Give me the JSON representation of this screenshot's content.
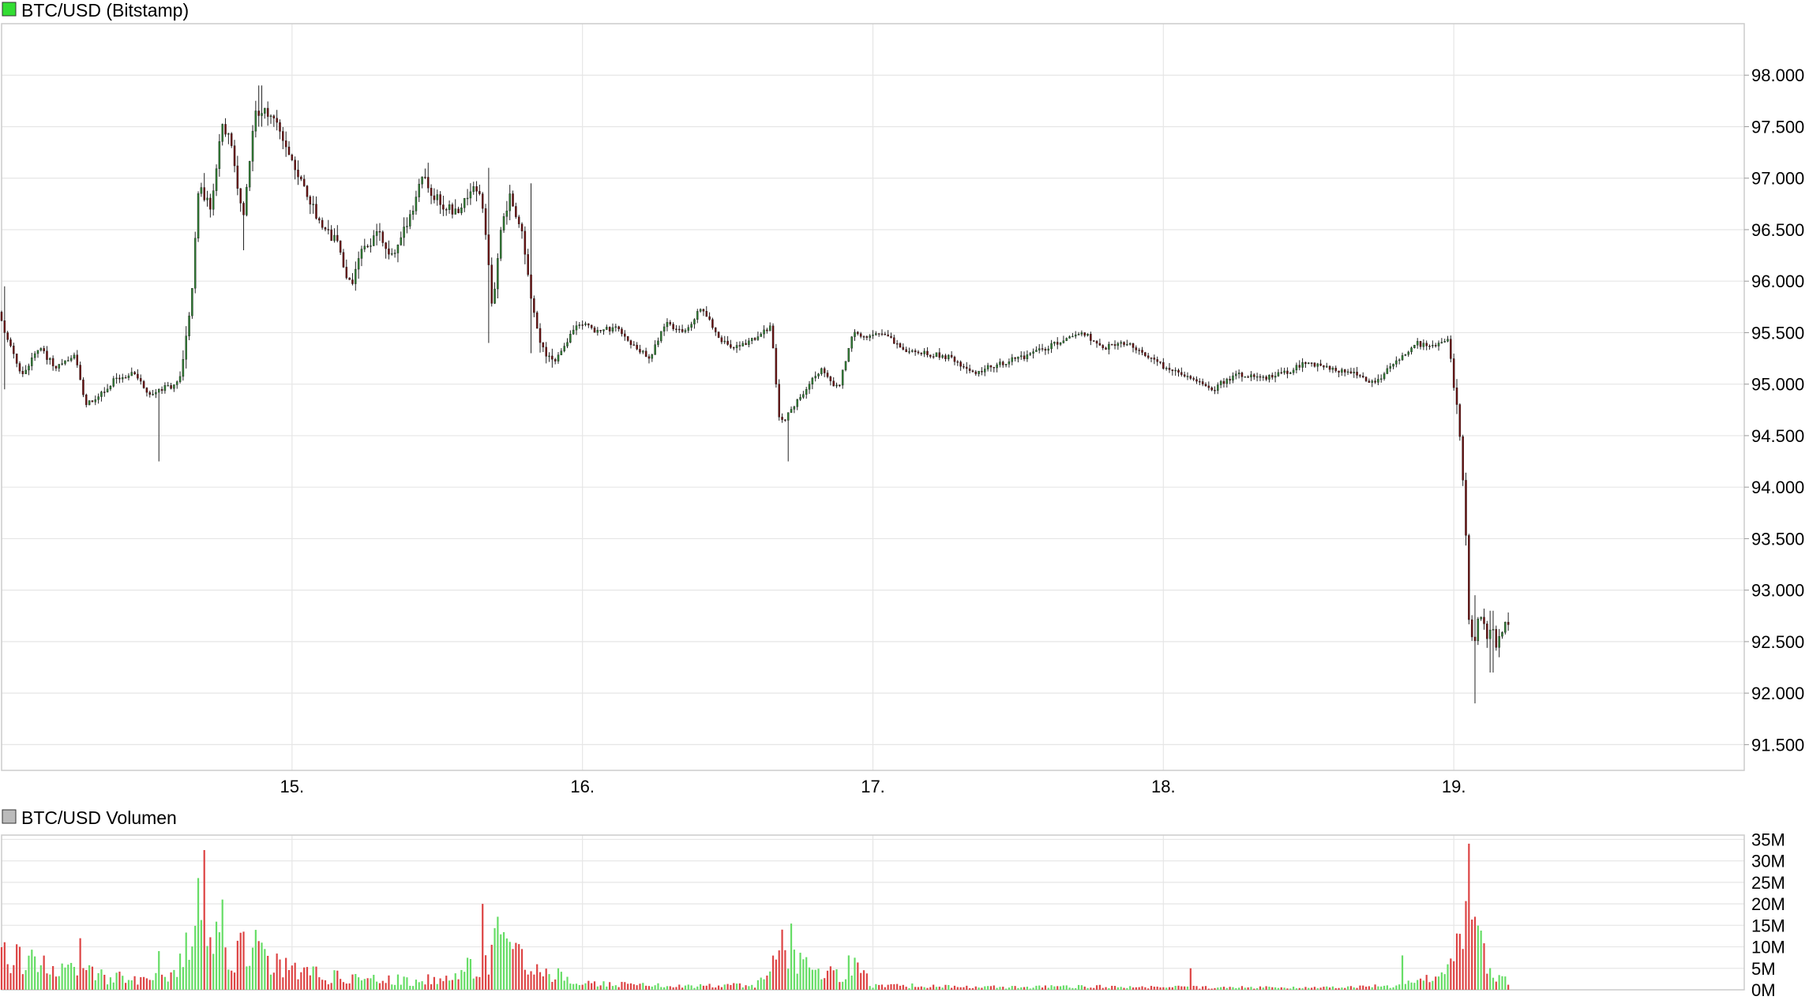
{
  "chart_data": [
    {
      "type": "candlestick",
      "title": "BTC/USD (Bitstamp)",
      "legend_color": "#33dd33",
      "y_tick_labels": [
        "98.000",
        "97.500",
        "97.000",
        "96.500",
        "96.000",
        "95.500",
        "95.000",
        "94.500",
        "94.000",
        "93.500",
        "93.000",
        "92.500",
        "92.000",
        "91.500"
      ],
      "y_ticks": [
        98000,
        97500,
        97000,
        96500,
        96000,
        95500,
        95000,
        94500,
        94000,
        93500,
        93000,
        92500,
        92000,
        91500
      ],
      "ylim": [
        91250,
        98500
      ],
      "x_tick_labels": [
        "15.",
        "16.",
        "17.",
        "18.",
        "19."
      ],
      "x_ticks": [
        1,
        2,
        3,
        4,
        5
      ],
      "xlim": [
        0,
        6
      ],
      "up_color": "#2e7d32",
      "down_color": "#6b0f0f",
      "price_path": [
        [
          0.0,
          95700
        ],
        [
          0.03,
          95450
        ],
        [
          0.08,
          95100
        ],
        [
          0.14,
          95350
        ],
        [
          0.2,
          95150
        ],
        [
          0.26,
          95300
        ],
        [
          0.3,
          94800
        ],
        [
          0.34,
          94850
        ],
        [
          0.4,
          95050
        ],
        [
          0.46,
          95100
        ],
        [
          0.52,
          94900
        ],
        [
          0.56,
          94950
        ],
        [
          0.62,
          95000
        ],
        [
          0.66,
          95700
        ],
        [
          0.69,
          96900
        ],
        [
          0.73,
          96700
        ],
        [
          0.77,
          97550
        ],
        [
          0.8,
          97350
        ],
        [
          0.84,
          96600
        ],
        [
          0.88,
          97600
        ],
        [
          0.93,
          97650
        ],
        [
          0.98,
          97400
        ],
        [
          1.02,
          97050
        ],
        [
          1.07,
          96800
        ],
        [
          1.12,
          96500
        ],
        [
          1.17,
          96350
        ],
        [
          1.21,
          95950
        ],
        [
          1.26,
          96350
        ],
        [
          1.31,
          96450
        ],
        [
          1.35,
          96250
        ],
        [
          1.4,
          96500
        ],
        [
          1.46,
          97000
        ],
        [
          1.52,
          96750
        ],
        [
          1.58,
          96650
        ],
        [
          1.64,
          96950
        ],
        [
          1.67,
          96700
        ],
        [
          1.7,
          95700
        ],
        [
          1.73,
          96500
        ],
        [
          1.76,
          96800
        ],
        [
          1.8,
          96550
        ],
        [
          1.83,
          95900
        ],
        [
          1.86,
          95400
        ],
        [
          1.91,
          95200
        ],
        [
          1.95,
          95400
        ],
        [
          2.0,
          95600
        ],
        [
          2.06,
          95500
        ],
        [
          2.12,
          95550
        ],
        [
          2.18,
          95400
        ],
        [
          2.24,
          95250
        ],
        [
          2.3,
          95600
        ],
        [
          2.36,
          95500
        ],
        [
          2.42,
          95750
        ],
        [
          2.48,
          95450
        ],
        [
          2.54,
          95350
        ],
        [
          2.6,
          95450
        ],
        [
          2.66,
          95550
        ],
        [
          2.69,
          94600
        ],
        [
          2.73,
          94750
        ],
        [
          2.78,
          94950
        ],
        [
          2.83,
          95150
        ],
        [
          2.89,
          94950
        ],
        [
          2.94,
          95500
        ],
        [
          3.0,
          95450
        ],
        [
          3.06,
          95500
        ],
        [
          3.12,
          95300
        ],
        [
          3.2,
          95300
        ],
        [
          3.28,
          95250
        ],
        [
          3.36,
          95100
        ],
        [
          3.44,
          95200
        ],
        [
          3.52,
          95250
        ],
        [
          3.6,
          95350
        ],
        [
          3.68,
          95450
        ],
        [
          3.74,
          95500
        ],
        [
          3.8,
          95350
        ],
        [
          3.88,
          95400
        ],
        [
          3.95,
          95300
        ],
        [
          4.02,
          95150
        ],
        [
          4.1,
          95050
        ],
        [
          4.18,
          94950
        ],
        [
          4.26,
          95100
        ],
        [
          4.34,
          95050
        ],
        [
          4.42,
          95100
        ],
        [
          4.5,
          95200
        ],
        [
          4.58,
          95150
        ],
        [
          4.66,
          95100
        ],
        [
          4.74,
          95000
        ],
        [
          4.82,
          95250
        ],
        [
          4.88,
          95400
        ],
        [
          4.94,
          95350
        ],
        [
          4.99,
          95450
        ],
        [
          5.01,
          95000
        ],
        [
          5.03,
          94600
        ],
        [
          5.05,
          93700
        ],
        [
          5.06,
          92750
        ],
        [
          5.08,
          92450
        ],
        [
          5.1,
          92850
        ],
        [
          5.12,
          92550
        ],
        [
          5.14,
          92650
        ],
        [
          5.16,
          92450
        ],
        [
          5.18,
          92600
        ],
        [
          5.19,
          92700
        ]
      ],
      "spikes": [
        [
          0.01,
          95950,
          94950
        ],
        [
          0.54,
          94950,
          94250
        ],
        [
          0.7,
          97050,
          96800
        ],
        [
          0.89,
          97900,
          97500
        ],
        [
          0.83,
          96700,
          96300
        ],
        [
          1.47,
          97150,
          96900
        ],
        [
          1.68,
          97100,
          95400
        ],
        [
          1.82,
          96950,
          95300
        ],
        [
          2.71,
          94700,
          94250
        ],
        [
          5.07,
          92950,
          91900
        ],
        [
          5.13,
          92800,
          92200
        ]
      ]
    },
    {
      "type": "bar",
      "title": "BTC/USD Volumen",
      "legend_color": "#bbbbbb",
      "y_tick_labels": [
        "35M",
        "30M",
        "25M",
        "20M",
        "15M",
        "10M",
        "5M",
        "0M"
      ],
      "y_ticks": [
        35,
        30,
        25,
        20,
        15,
        10,
        5,
        0
      ],
      "ylim": [
        0,
        36
      ],
      "x_ticks": [
        1,
        2,
        3,
        4,
        5
      ],
      "xlim": [
        0,
        6
      ],
      "unit": "M",
      "up_color": "#66dd66",
      "down_color": "#dd4444",
      "volume_profile": [
        [
          0.0,
          8
        ],
        [
          0.1,
          7
        ],
        [
          0.2,
          5
        ],
        [
          0.3,
          4
        ],
        [
          0.4,
          3
        ],
        [
          0.5,
          3
        ],
        [
          0.6,
          4
        ],
        [
          0.66,
          14
        ],
        [
          0.7,
          23
        ],
        [
          0.75,
          14
        ],
        [
          0.8,
          11
        ],
        [
          0.88,
          10
        ],
        [
          0.95,
          7
        ],
        [
          1.05,
          4
        ],
        [
          1.3,
          2.5
        ],
        [
          1.55,
          2.5
        ],
        [
          1.66,
          9
        ],
        [
          1.72,
          12
        ],
        [
          1.8,
          6
        ],
        [
          1.9,
          4
        ],
        [
          2.0,
          1.5
        ],
        [
          2.3,
          1.0
        ],
        [
          2.6,
          1.2
        ],
        [
          2.68,
          8
        ],
        [
          2.72,
          11
        ],
        [
          2.78,
          5
        ],
        [
          2.9,
          3
        ],
        [
          2.94,
          6
        ],
        [
          3.0,
          1.2
        ],
        [
          3.4,
          0.7
        ],
        [
          3.8,
          0.8
        ],
        [
          4.2,
          0.6
        ],
        [
          4.6,
          0.6
        ],
        [
          4.8,
          1.0
        ],
        [
          4.95,
          3
        ],
        [
          5.0,
          7
        ],
        [
          5.04,
          22
        ],
        [
          5.07,
          14
        ],
        [
          5.12,
          5
        ],
        [
          5.19,
          1.5
        ]
      ],
      "volume_spikes": [
        [
          0.27,
          12
        ],
        [
          0.54,
          9
        ],
        [
          0.68,
          26
        ],
        [
          0.7,
          26
        ],
        [
          0.76,
          21
        ],
        [
          1.66,
          20
        ],
        [
          1.71,
          17
        ],
        [
          2.69,
          14
        ],
        [
          2.92,
          8
        ],
        [
          4.09,
          5
        ],
        [
          4.82,
          8
        ],
        [
          5.05,
          34
        ],
        [
          5.07,
          17
        ]
      ]
    }
  ]
}
